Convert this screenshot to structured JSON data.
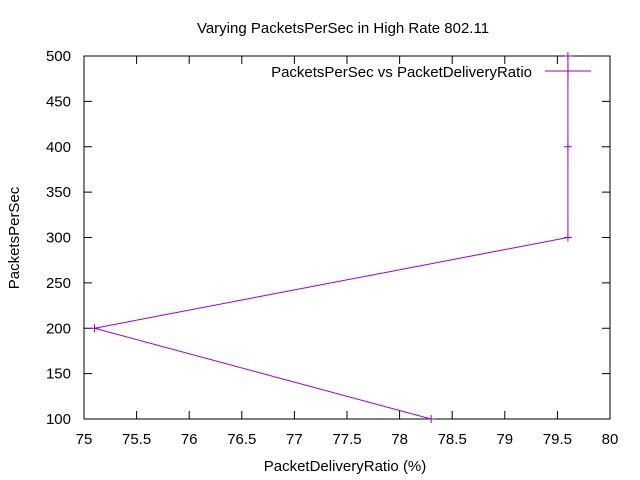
{
  "chart_data": {
    "type": "line",
    "title": "Varying PacketsPerSec in High Rate 802.11",
    "xlabel": "PacketDeliveryRatio (%)",
    "ylabel": "PacketsPerSec",
    "xlim": [
      75,
      80
    ],
    "ylim": [
      100,
      500
    ],
    "x_ticks": [
      "75",
      "75.5",
      "76",
      "76.5",
      "77",
      "77.5",
      "78",
      "78.5",
      "79",
      "79.5",
      "80"
    ],
    "y_ticks": [
      "100",
      "150",
      "200",
      "250",
      "300",
      "350",
      "400",
      "450",
      "500"
    ],
    "grid": false,
    "legend_position": "top-right",
    "series": [
      {
        "name": "PacketsPerSec vs PacketDeliveryRatio",
        "color": "#9400d3",
        "marker": "plus",
        "points": [
          {
            "x": 78.3,
            "y": 100
          },
          {
            "x": 75.1,
            "y": 200
          },
          {
            "x": 79.6,
            "y": 300
          },
          {
            "x": 79.6,
            "y": 400
          },
          {
            "x": 79.6,
            "y": 500
          }
        ]
      }
    ]
  }
}
